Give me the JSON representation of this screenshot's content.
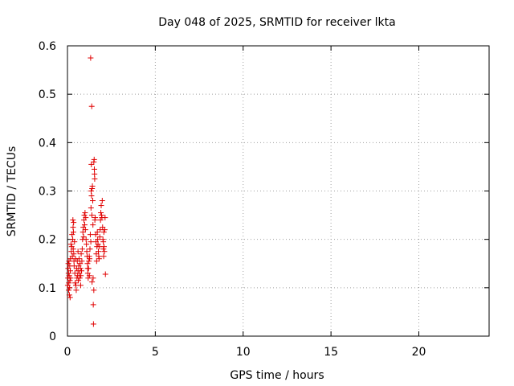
{
  "chart_data": {
    "type": "scatter",
    "title": "Day 048 of 2025, SRMTID for receiver lkta",
    "xlabel": "GPS time / hours",
    "ylabel": "SRMTID / TECUs",
    "xlim": [
      0,
      24
    ],
    "ylim": [
      0,
      0.6
    ],
    "xticks": [
      0,
      5,
      10,
      15,
      20
    ],
    "yticks": [
      0,
      0.1,
      0.2,
      0.3,
      0.4,
      0.5,
      0.6
    ],
    "xtick_labels": [
      "0",
      "5",
      "10",
      "15",
      "20"
    ],
    "ytick_labels": [
      "0",
      "0.1",
      "0.2",
      "0.3",
      "0.4",
      "0.5",
      "0.6"
    ],
    "grid": true,
    "marker": "+",
    "color": "#e00000",
    "series": [
      {
        "name": "SRMTID",
        "points": [
          [
            0.02,
            0.105
          ],
          [
            0.03,
            0.12
          ],
          [
            0.04,
            0.14
          ],
          [
            0.05,
            0.15
          ],
          [
            0.06,
            0.13
          ],
          [
            0.07,
            0.095
          ],
          [
            0.08,
            0.11
          ],
          [
            0.09,
            0.155
          ],
          [
            0.1,
            0.125
          ],
          [
            0.11,
            0.085
          ],
          [
            0.12,
            0.1
          ],
          [
            0.13,
            0.145
          ],
          [
            0.14,
            0.115
          ],
          [
            0.15,
            0.08
          ],
          [
            0.16,
            0.135
          ],
          [
            0.17,
            0.16
          ],
          [
            0.18,
            0.12
          ],
          [
            0.2,
            0.19
          ],
          [
            0.22,
            0.175
          ],
          [
            0.24,
            0.185
          ],
          [
            0.26,
            0.21
          ],
          [
            0.28,
            0.165
          ],
          [
            0.3,
            0.2
          ],
          [
            0.31,
            0.24
          ],
          [
            0.32,
            0.225
          ],
          [
            0.33,
            0.18
          ],
          [
            0.34,
            0.215
          ],
          [
            0.35,
            0.235
          ],
          [
            0.36,
            0.17
          ],
          [
            0.37,
            0.155
          ],
          [
            0.38,
            0.145
          ],
          [
            0.4,
            0.195
          ],
          [
            0.42,
            0.13
          ],
          [
            0.44,
            0.11
          ],
          [
            0.46,
            0.16
          ],
          [
            0.48,
            0.105
          ],
          [
            0.5,
            0.095
          ],
          [
            0.52,
            0.14
          ],
          [
            0.54,
            0.12
          ],
          [
            0.56,
            0.155
          ],
          [
            0.58,
            0.125
          ],
          [
            0.6,
            0.135
          ],
          [
            0.62,
            0.115
          ],
          [
            0.64,
            0.145
          ],
          [
            0.66,
            0.16
          ],
          [
            0.68,
            0.13
          ],
          [
            0.7,
            0.12
          ],
          [
            0.72,
            0.15
          ],
          [
            0.74,
            0.14
          ],
          [
            0.76,
            0.125
          ],
          [
            0.78,
            0.17
          ],
          [
            0.8,
            0.135
          ],
          [
            0.82,
            0.155
          ],
          [
            0.84,
            0.18
          ],
          [
            0.86,
            0.2
          ],
          [
            0.88,
            0.215
          ],
          [
            0.9,
            0.225
          ],
          [
            0.92,
            0.205
          ],
          [
            0.94,
            0.24
          ],
          [
            0.96,
            0.25
          ],
          [
            0.98,
            0.23
          ],
          [
            1.0,
            0.255
          ],
          [
            1.02,
            0.22
          ],
          [
            1.04,
            0.245
          ],
          [
            1.06,
            0.2
          ],
          [
            1.08,
            0.19
          ],
          [
            1.1,
            0.175
          ],
          [
            1.12,
            0.165
          ],
          [
            1.14,
            0.15
          ],
          [
            1.16,
            0.13
          ],
          [
            1.18,
            0.12
          ],
          [
            1.2,
            0.14
          ],
          [
            1.22,
            0.155
          ],
          [
            1.24,
            0.165
          ],
          [
            1.26,
            0.16
          ],
          [
            1.28,
            0.18
          ],
          [
            1.3,
            0.21
          ],
          [
            1.32,
            0.575
          ],
          [
            1.33,
            0.195
          ],
          [
            1.34,
            0.265
          ],
          [
            1.35,
            0.3
          ],
          [
            1.36,
            0.355
          ],
          [
            1.37,
            0.29
          ],
          [
            1.38,
            0.475
          ],
          [
            1.39,
            0.25
          ],
          [
            1.4,
            0.305
          ],
          [
            1.42,
            0.31
          ],
          [
            1.44,
            0.28
          ],
          [
            1.45,
            0.23
          ],
          [
            1.46,
            0.12
          ],
          [
            1.47,
            0.065
          ],
          [
            1.48,
            0.025
          ],
          [
            1.5,
            0.36
          ],
          [
            1.52,
            0.365
          ],
          [
            1.53,
            0.345
          ],
          [
            1.54,
            0.335
          ],
          [
            1.55,
            0.325
          ],
          [
            1.56,
            0.24
          ],
          [
            1.58,
            0.245
          ],
          [
            1.6,
            0.21
          ],
          [
            1.62,
            0.195
          ],
          [
            1.64,
            0.17
          ],
          [
            1.66,
            0.155
          ],
          [
            1.68,
            0.185
          ],
          [
            1.7,
            0.215
          ],
          [
            1.72,
            0.2
          ],
          [
            1.74,
            0.19
          ],
          [
            1.76,
            0.175
          ],
          [
            1.78,
            0.165
          ],
          [
            1.8,
            0.16
          ],
          [
            1.82,
            0.185
          ],
          [
            1.84,
            0.205
          ],
          [
            1.86,
            0.22
          ],
          [
            1.88,
            0.24
          ],
          [
            1.9,
            0.255
          ],
          [
            1.92,
            0.27
          ],
          [
            1.94,
            0.25
          ],
          [
            1.96,
            0.245
          ],
          [
            1.98,
            0.28
          ],
          [
            2.0,
            0.225
          ],
          [
            2.02,
            0.2
          ],
          [
            2.04,
            0.195
          ],
          [
            2.05,
            0.18
          ],
          [
            2.06,
            0.165
          ],
          [
            2.07,
            0.215
          ],
          [
            2.08,
            0.185
          ],
          [
            2.1,
            0.175
          ],
          [
            2.12,
            0.22
          ],
          [
            2.14,
            0.245
          ],
          [
            2.16,
            0.128
          ],
          [
            1.5,
            0.095
          ],
          [
            1.4,
            0.112
          ],
          [
            0.6,
            0.175
          ],
          [
            0.75,
            0.105
          ],
          [
            1.15,
            0.14
          ],
          [
            1.25,
            0.125
          ]
        ]
      }
    ]
  }
}
